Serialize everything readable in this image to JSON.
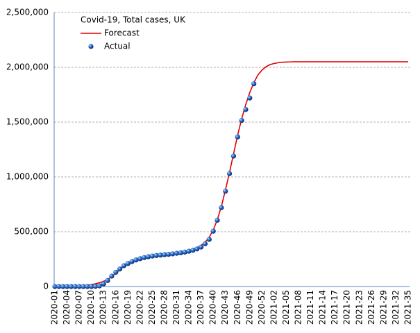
{
  "chart_data": {
    "type": "line",
    "title": "Covid-19, Total cases, UK",
    "categories": [
      "2020-01",
      null,
      null,
      "2020-04",
      null,
      null,
      "2020-07",
      null,
      null,
      "2020-10",
      null,
      null,
      "2020-13",
      null,
      null,
      "2020-16",
      null,
      null,
      "2020-19",
      null,
      null,
      "2020-22",
      null,
      null,
      "2020-25",
      null,
      null,
      "2020-28",
      null,
      null,
      "2020-31",
      null,
      null,
      "2020-34",
      null,
      null,
      "2020-37",
      null,
      null,
      "2020-40",
      null,
      null,
      "2020-43",
      null,
      null,
      "2020-46",
      null,
      null,
      "2020-49",
      null,
      null,
      "2020-52",
      null,
      null,
      "2021-02",
      null,
      null,
      "2021-05",
      null,
      null,
      "2021-08",
      null,
      null,
      "2021-11",
      null,
      null,
      "2021-14",
      null,
      null,
      "2021-17",
      null,
      null,
      "2021-20",
      null,
      null,
      "2021-23",
      null,
      null,
      "2021-26",
      null,
      null,
      "2021-29",
      null,
      null,
      "2021-32",
      null,
      null,
      "2021-35"
    ],
    "series": [
      {
        "name": "Forecast",
        "type": "line",
        "color": "#e00000",
        "values": [
          0,
          500,
          1000,
          1500,
          2500,
          4000,
          6000,
          9000,
          13000,
          18000,
          25000,
          35000,
          48000,
          65000,
          90000,
          120000,
          155000,
          185000,
          210000,
          230000,
          245000,
          256000,
          265000,
          272000,
          278000,
          283000,
          287000,
          291000,
          295000,
          299000,
          304000,
          310000,
          318000,
          328000,
          340000,
          355000,
          375000,
          405000,
          450000,
          515000,
          610000,
          730000,
          880000,
          1040000,
          1210000,
          1380000,
          1530000,
          1660000,
          1770000,
          1860000,
          1930000,
          1975000,
          2005000,
          2025000,
          2035000,
          2042000,
          2046000,
          2048000,
          2049000,
          2050000,
          2050000,
          2050000,
          2050000,
          2050000,
          2050000,
          2050000,
          2050000,
          2050000,
          2050000,
          2050000,
          2050000,
          2050000,
          2050000,
          2050000,
          2050000,
          2050000,
          2050000,
          2050000,
          2050000,
          2050000,
          2050000,
          2050000,
          2050000,
          2050000,
          2050000,
          2050000,
          2050000,
          2050000
        ]
      },
      {
        "name": "Actual",
        "type": "scatter",
        "color": "#1f5fbf",
        "values": [
          0,
          0,
          0,
          0,
          0,
          0,
          0,
          0,
          0,
          0,
          1500,
          6000,
          25000,
          55000,
          95000,
          130000,
          160000,
          190000,
          210000,
          228000,
          242000,
          254000,
          264000,
          272000,
          278000,
          283000,
          287000,
          291000,
          294000,
          298000,
          303000,
          308000,
          314000,
          322000,
          331000,
          343000,
          360000,
          390000,
          430000,
          505000,
          605000,
          720000,
          870000,
          1030000,
          1190000,
          1365000,
          1515000,
          1615000,
          1720000,
          1850000,
          null,
          null,
          null,
          null,
          null,
          null,
          null,
          null,
          null,
          null,
          null,
          null,
          null,
          null,
          null,
          null,
          null,
          null,
          null,
          null,
          null,
          null,
          null,
          null,
          null,
          null,
          null,
          null,
          null,
          null,
          null,
          null,
          null,
          null,
          null,
          null,
          null,
          null
        ]
      }
    ],
    "ylim": [
      0,
      2500000
    ],
    "yticks": [
      0,
      {
        "value": 500000,
        "label": "500,000"
      },
      {
        "value": 1000000,
        "label": "1,000,000"
      },
      {
        "value": 1500000,
        "label": "1,500,000"
      },
      {
        "value": 2000000,
        "label": "2,000,000"
      },
      {
        "value": 2500000,
        "label": "2,500,000"
      }
    ],
    "grid": true,
    "legend": "upper left"
  }
}
